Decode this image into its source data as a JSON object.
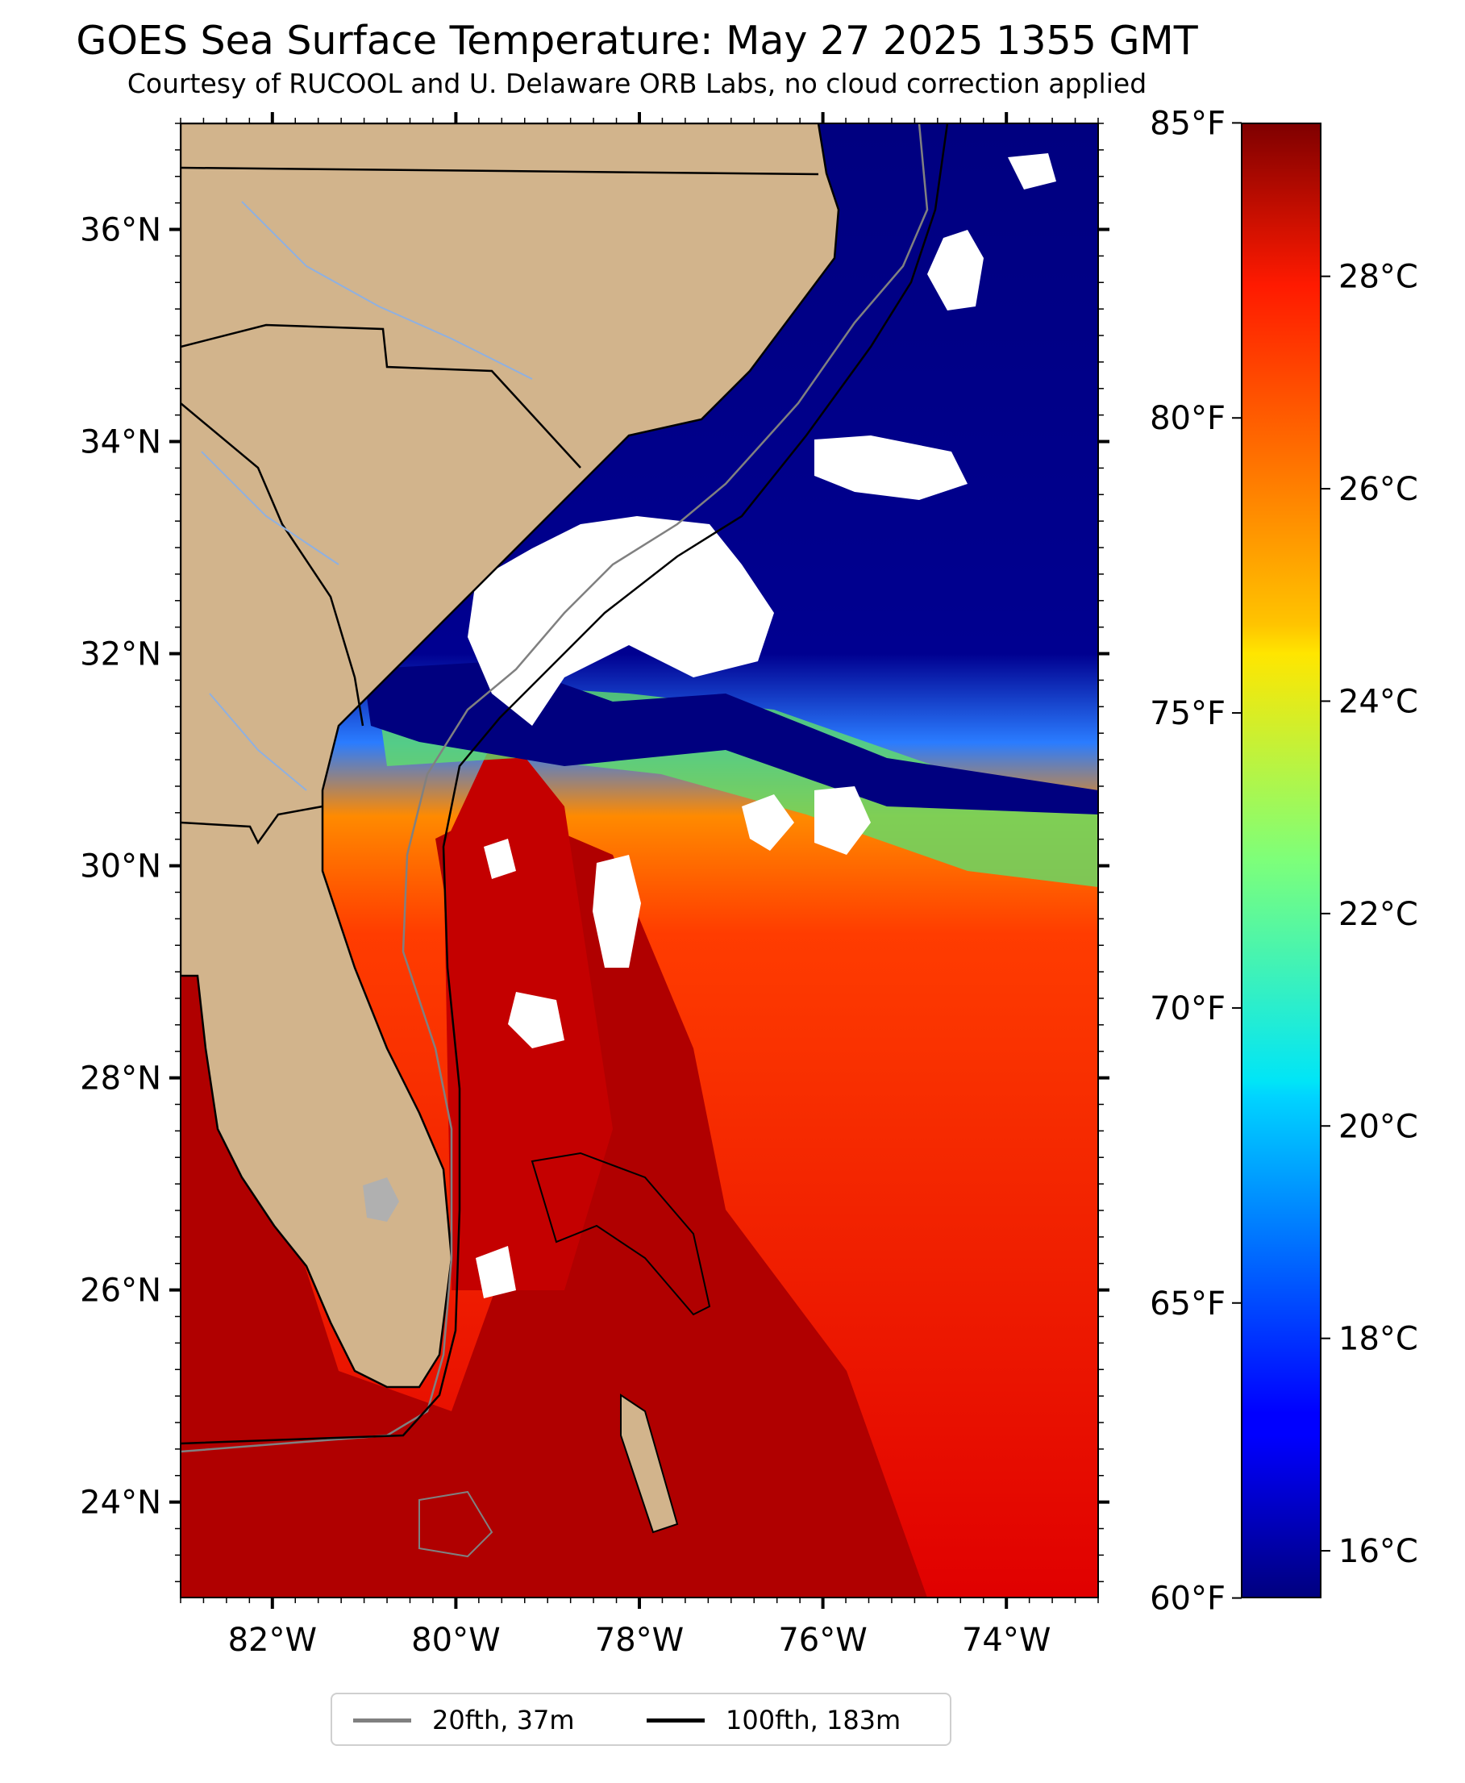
{
  "title": "GOES Sea Surface Temperature: May 27 2025 1355 GMT",
  "subtitle": "Courtesy of RUCOOL and U. Delaware ORB Labs, no cloud correction applied",
  "map": {
    "lon_range": [
      -83.0,
      -73.0
    ],
    "lat_range": [
      23.1,
      37.0
    ],
    "lon_ticks": [
      {
        "value": -82,
        "label": "82°W"
      },
      {
        "value": -80,
        "label": "80°W"
      },
      {
        "value": -78,
        "label": "78°W"
      },
      {
        "value": -76,
        "label": "76°W"
      },
      {
        "value": -74,
        "label": "74°W"
      }
    ],
    "lat_ticks": [
      {
        "value": 24,
        "label": "24°N"
      },
      {
        "value": 26,
        "label": "26°N"
      },
      {
        "value": 28,
        "label": "28°N"
      },
      {
        "value": 30,
        "label": "30°N"
      },
      {
        "value": 32,
        "label": "32°N"
      },
      {
        "value": 34,
        "label": "34°N"
      },
      {
        "value": 36,
        "label": "36°N"
      }
    ],
    "land_color": "#d2b48c",
    "cloud_color": "#ffffff",
    "colormap": "jet"
  },
  "colorbar": {
    "celsius_range": [
      15.56,
      29.44
    ],
    "fahrenheit_ticks": [
      {
        "value": 60,
        "label": "60°F"
      },
      {
        "value": 65,
        "label": "65°F"
      },
      {
        "value": 70,
        "label": "70°F"
      },
      {
        "value": 75,
        "label": "75°F"
      },
      {
        "value": 80,
        "label": "80°F"
      },
      {
        "value": 85,
        "label": "85°F"
      }
    ],
    "celsius_ticks": [
      {
        "value": 16,
        "label": "16°C"
      },
      {
        "value": 18,
        "label": "18°C"
      },
      {
        "value": 20,
        "label": "20°C"
      },
      {
        "value": 22,
        "label": "22°C"
      },
      {
        "value": 24,
        "label": "24°C"
      },
      {
        "value": 26,
        "label": "26°C"
      },
      {
        "value": 28,
        "label": "28°C"
      }
    ]
  },
  "legend": {
    "items": [
      {
        "label": "20fth, 37m",
        "color": "#808080"
      },
      {
        "label": "100fth, 183m",
        "color": "#000000"
      }
    ]
  }
}
